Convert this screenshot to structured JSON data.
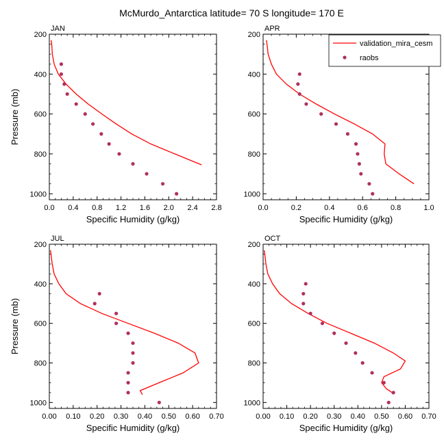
{
  "figure": {
    "title": "McMurdo_Antarctica  latitude= 70 S longitude= 170 E"
  },
  "legend": {
    "model_label": "validation_mira_cesm",
    "obs_label": "raobs",
    "model_color": "#ff0000",
    "obs_color": "#b03060",
    "placement": "top-right of APR panel"
  },
  "chart_data": [
    {
      "type": "line",
      "panel": "JAN",
      "xlabel": "Specific Humidity (g/kg)",
      "ylabel": "Pressure (mb)",
      "xlim": [
        0,
        2.8
      ],
      "ylim": [
        200,
        1030
      ],
      "y_inverted": true,
      "xticks": [
        "0.0",
        "0.4",
        "0.8",
        "1.2",
        "1.6",
        "2.0",
        "2.4",
        "2.8"
      ],
      "yticks": [
        "200",
        "400",
        "600",
        "800",
        "1000"
      ],
      "series": [
        {
          "name": "validation_mira_cesm",
          "style": "line",
          "x": [
            0.03,
            0.04,
            0.05,
            0.08,
            0.15,
            0.28,
            0.45,
            0.65,
            0.88,
            1.12,
            1.38,
            1.7,
            2.1,
            2.55
          ],
          "y": [
            230,
            250,
            300,
            350,
            400,
            450,
            500,
            550,
            600,
            650,
            700,
            750,
            800,
            855
          ]
        },
        {
          "name": "raobs",
          "style": "markers",
          "x": [
            0.2,
            0.2,
            0.25,
            0.3,
            0.45,
            0.6,
            0.73,
            0.87,
            1.0,
            1.17,
            1.4,
            1.63,
            1.9,
            2.13
          ],
          "y": [
            350,
            400,
            450,
            500,
            550,
            600,
            650,
            700,
            750,
            800,
            850,
            900,
            950,
            1000
          ]
        }
      ]
    },
    {
      "type": "line",
      "panel": "APR",
      "xlabel": "Specific Humidity (g/kg)",
      "ylabel": "Pressure (mb)",
      "xlim": [
        0,
        1.0
      ],
      "ylim": [
        200,
        1030
      ],
      "y_inverted": true,
      "xticks": [
        "0.0",
        "0.2",
        "0.4",
        "0.6",
        "0.8",
        "1.0"
      ],
      "yticks": [
        "200",
        "400",
        "600",
        "800",
        "1000"
      ],
      "series": [
        {
          "name": "validation_mira_cesm",
          "style": "line",
          "x": [
            0.02,
            0.025,
            0.03,
            0.05,
            0.08,
            0.14,
            0.22,
            0.32,
            0.43,
            0.55,
            0.66,
            0.735,
            0.73,
            0.74,
            0.82,
            0.91
          ],
          "y": [
            230,
            260,
            300,
            350,
            400,
            450,
            500,
            550,
            600,
            650,
            700,
            750,
            800,
            850,
            900,
            950
          ]
        },
        {
          "name": "raobs",
          "style": "markers",
          "x": [
            0.22,
            0.21,
            0.22,
            0.26,
            0.35,
            0.44,
            0.51,
            0.56,
            0.57,
            0.58,
            0.59,
            0.64,
            0.66
          ],
          "y": [
            400,
            450,
            500,
            550,
            600,
            650,
            700,
            750,
            800,
            850,
            900,
            950,
            1000
          ]
        }
      ]
    },
    {
      "type": "line",
      "panel": "JUL",
      "xlabel": "Specific Humidity (g/kg)",
      "ylabel": "Pressure (mb)",
      "xlim": [
        0,
        0.7
      ],
      "ylim": [
        200,
        1030
      ],
      "y_inverted": true,
      "xticks": [
        "0.00",
        "0.10",
        "0.20",
        "0.30",
        "0.40",
        "0.50",
        "0.60",
        "0.70"
      ],
      "yticks": [
        "200",
        "400",
        "600",
        "800",
        "1000"
      ],
      "series": [
        {
          "name": "validation_mira_cesm",
          "style": "line",
          "x": [
            0.005,
            0.008,
            0.012,
            0.02,
            0.04,
            0.07,
            0.13,
            0.22,
            0.33,
            0.44,
            0.54,
            0.61,
            0.625,
            0.56,
            0.46,
            0.38,
            0.39
          ],
          "y": [
            230,
            260,
            300,
            350,
            400,
            450,
            500,
            550,
            600,
            650,
            700,
            750,
            800,
            850,
            900,
            940,
            960
          ]
        },
        {
          "name": "raobs",
          "style": "markers",
          "x": [
            0.21,
            0.19,
            0.28,
            0.28,
            0.33,
            0.35,
            0.35,
            0.35,
            0.33,
            0.33,
            0.33,
            0.46
          ],
          "y": [
            450,
            500,
            550,
            600,
            650,
            700,
            750,
            800,
            850,
            900,
            950,
            1000
          ]
        }
      ]
    },
    {
      "type": "line",
      "panel": "OCT",
      "xlabel": "Specific Humidity (g/kg)",
      "ylabel": "Pressure (mb)",
      "xlim": [
        0,
        0.7
      ],
      "ylim": [
        200,
        1030
      ],
      "y_inverted": true,
      "xticks": [
        "0.00",
        "0.10",
        "0.20",
        "0.30",
        "0.40",
        "0.50",
        "0.60",
        "0.70"
      ],
      "yticks": [
        "200",
        "400",
        "600",
        "800",
        "1000"
      ],
      "series": [
        {
          "name": "validation_mira_cesm",
          "style": "line",
          "x": [
            0.005,
            0.008,
            0.012,
            0.02,
            0.04,
            0.07,
            0.12,
            0.19,
            0.27,
            0.37,
            0.47,
            0.55,
            0.6,
            0.58,
            0.51,
            0.5,
            0.52,
            0.545
          ],
          "y": [
            230,
            260,
            300,
            350,
            400,
            450,
            500,
            550,
            600,
            650,
            700,
            750,
            790,
            830,
            870,
            900,
            930,
            950
          ]
        },
        {
          "name": "raobs",
          "style": "markers",
          "x": [
            0.18,
            0.17,
            0.17,
            0.2,
            0.25,
            0.3,
            0.35,
            0.39,
            0.42,
            0.46,
            0.55,
            0.51,
            0.53
          ],
          "y": [
            400,
            450,
            500,
            550,
            600,
            650,
            700,
            750,
            800,
            850,
            950,
            900,
            1000
          ]
        }
      ]
    }
  ]
}
